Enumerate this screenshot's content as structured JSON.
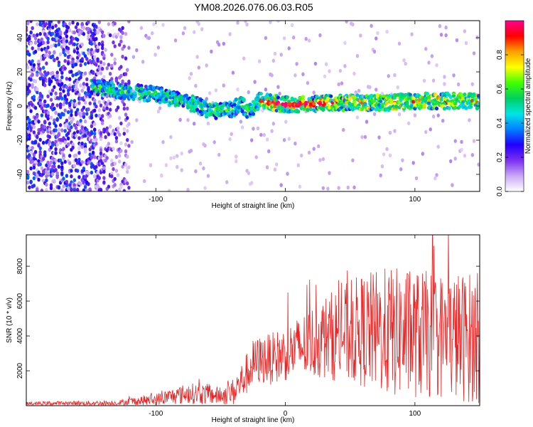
{
  "title": "YM08.2026.076.06.03.R05",
  "chart_data": [
    {
      "type": "heatmap",
      "xlabel": "Height of straight line (km)",
      "ylabel": "Frequency (Hz)",
      "xlim": [
        -200,
        150
      ],
      "ylim": [
        -50,
        50
      ],
      "x_ticks": [
        -100,
        0,
        100
      ],
      "y_ticks": [
        -40,
        -20,
        0,
        20,
        40
      ],
      "x_tick_labels": [
        "-100",
        "0",
        "100"
      ],
      "y_tick_labels": [
        "-40",
        "-20",
        "0",
        "20",
        "40"
      ],
      "colorbar": {
        "label": "Normalized spectral amplitude",
        "range": [
          0,
          1
        ],
        "ticks": [
          0.0,
          0.2,
          0.4,
          0.6,
          0.8
        ],
        "tick_labels": [
          "0.0",
          "0.2",
          "0.4",
          "0.6",
          "0.8"
        ],
        "colors": [
          "#ffffff",
          "#c9a8f5",
          "#7b2ff0",
          "#2200ff",
          "#0080ff",
          "#00e5e5",
          "#00d060",
          "#40ff00",
          "#ffff00",
          "#ffa000",
          "#ff0000",
          "#ff0090"
        ]
      },
      "ridge": {
        "x": [
          -145,
          -130,
          -115,
          -100,
          -90,
          -80,
          -70,
          -60,
          -50,
          -40,
          -35,
          -30,
          -25,
          -20,
          -10,
          0,
          20,
          40,
          60,
          80,
          100,
          120,
          150
        ],
        "y": [
          11,
          9,
          8,
          7,
          5,
          3,
          1,
          -2,
          -3,
          -2,
          2,
          -2,
          -1,
          3,
          2,
          1,
          1,
          2,
          2,
          2,
          3,
          3,
          3
        ]
      },
      "noise_region_x": [
        -200,
        -120
      ]
    },
    {
      "type": "line",
      "xlabel": "Height of straight line (km)",
      "ylabel": "SNR (10 * v/v)",
      "xlim": [
        -200,
        150
      ],
      "ylim": [
        0,
        9800
      ],
      "x_ticks": [
        -100,
        0,
        100
      ],
      "y_ticks": [
        2000,
        4000,
        6000,
        8000
      ],
      "x_tick_labels": [
        "-100",
        "0",
        "100"
      ],
      "y_tick_labels": [
        "2000",
        "4000",
        "6000",
        "8000"
      ],
      "color": "#ee2222",
      "envelope": {
        "x": [
          -200,
          -130,
          -120,
          -100,
          -90,
          -75,
          -60,
          -50,
          -40,
          -30,
          -25,
          -20,
          -10,
          0,
          10,
          20,
          30,
          40,
          60,
          80,
          100,
          120,
          150
        ],
        "mean": [
          120,
          150,
          220,
          350,
          500,
          700,
          650,
          550,
          800,
          1800,
          2400,
          2600,
          2700,
          3000,
          3300,
          3600,
          3900,
          4100,
          4300,
          4200,
          4100,
          4000,
          3900
        ],
        "amplitude": [
          120,
          150,
          250,
          350,
          450,
          600,
          600,
          500,
          800,
          1200,
          1400,
          1400,
          1500,
          1600,
          1800,
          2100,
          2400,
          2700,
          3300,
          3800,
          3700,
          3700,
          3800
        ]
      }
    }
  ]
}
